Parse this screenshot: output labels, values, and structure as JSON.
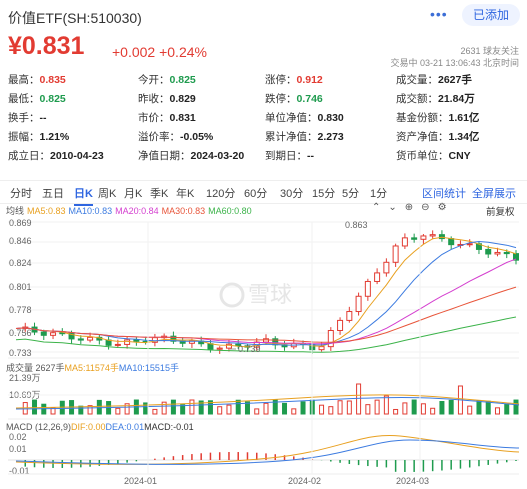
{
  "header": {
    "title": "价值ETF(SH:510030)",
    "more_icon": "more-dots-icon",
    "follow_label": "已添加"
  },
  "quote": {
    "price": "¥0.831",
    "change": "+0.002 +0.24%",
    "followers": "2631 球友关注",
    "time": "交易中 03-21 13:06:43 北京时间"
  },
  "stats": [
    [
      {
        "label": "最高：",
        "value": "0.835",
        "c": "red"
      },
      {
        "label": "今开：",
        "value": "0.825",
        "c": "green"
      },
      {
        "label": "涨停：",
        "value": "0.912",
        "c": "red"
      },
      {
        "label": "成交量：",
        "value": "2627手",
        "c": "dark"
      }
    ],
    [
      {
        "label": "最低：",
        "value": "0.825",
        "c": "green"
      },
      {
        "label": "昨收：",
        "value": "0.829",
        "c": "dark"
      },
      {
        "label": "跌停：",
        "value": "0.746",
        "c": "green"
      },
      {
        "label": "成交额：",
        "value": "21.84万",
        "c": "dark"
      }
    ],
    [
      {
        "label": "换手：",
        "value": "--",
        "c": "dark"
      },
      {
        "label": "市价：",
        "value": "0.831",
        "c": "dark"
      },
      {
        "label": "单位净值：",
        "value": "0.830",
        "c": "dark"
      },
      {
        "label": "基金份额：",
        "value": "1.61亿",
        "c": "dark"
      }
    ],
    [
      {
        "label": "振幅：",
        "value": "1.21%",
        "c": "dark"
      },
      {
        "label": "溢价率：",
        "value": "-0.05%",
        "c": "dark"
      },
      {
        "label": "累计净值：",
        "value": "2.273",
        "c": "dark"
      },
      {
        "label": "资产净值：",
        "value": "1.34亿",
        "c": "dark"
      }
    ],
    [
      {
        "label": "成立日：",
        "value": "2010-04-23",
        "c": "dark"
      },
      {
        "label": "净值日期：",
        "value": "2024-03-20",
        "c": "dark"
      },
      {
        "label": "到期日：",
        "value": "--",
        "c": "dark"
      },
      {
        "label": "货币单位：",
        "value": "CNY",
        "c": "dark"
      }
    ]
  ],
  "periods": [
    "分时",
    "五日",
    "日K",
    "周K",
    "月K",
    "季K",
    "年K",
    "120分",
    "60分",
    "30分",
    "15分",
    "5分",
    "1分"
  ],
  "active_period": "日K",
  "tools": {
    "interval_stats": "区间统计",
    "fullscreen": "全屏展示"
  },
  "ma_legend": [
    {
      "text": "均线",
      "color": "#555555"
    },
    {
      "text": "MA5:0.83",
      "color": "#e8a020"
    },
    {
      "text": "MA10:0.83",
      "color": "#3c7be0"
    },
    {
      "text": "MA20:0.84",
      "color": "#d43fcf"
    },
    {
      "text": "MA30:0.83",
      "color": "#e8553a"
    },
    {
      "text": "MA60:0.80",
      "color": "#3cb34a"
    }
  ],
  "chart_tools": [
    "chevron-up-icon",
    "chevron-down-icon",
    "plus-icon",
    "minus-icon",
    "settings-icon"
  ],
  "adjust_label": "前复权",
  "price_axis": [
    "0.869",
    "0.846",
    "0.824",
    "0.801",
    "0.778",
    "0.756",
    "0.733"
  ],
  "annotations": {
    "high": "0.863",
    "low": "0.739"
  },
  "volume": {
    "legend": [
      {
        "text": "成交量 2627手",
        "color": "#555555"
      },
      {
        "text": "MA5:11574手",
        "color": "#e8a020"
      },
      {
        "text": "MA10:15515手",
        "color": "#3c7be0"
      }
    ],
    "axis": [
      "21.39万",
      "10.69万"
    ]
  },
  "macd": {
    "legend": [
      {
        "text": "MACD (12,26,9)",
        "color": "#555555"
      },
      {
        "text": "DIF:0.00",
        "color": "#e8a020"
      },
      {
        "text": "DEA:0.01",
        "color": "#3c7be0"
      },
      {
        "text": "MACD:-0.01",
        "color": "#333333"
      }
    ],
    "axis": [
      "0.02",
      "0.01",
      "-0.01"
    ]
  },
  "x_axis": [
    "2024-01",
    "2024-02",
    "2024-03"
  ],
  "watermark": "雪球",
  "colors": {
    "up": "#e23b32",
    "down": "#1e9b4e",
    "accent": "#2f66e0"
  }
}
